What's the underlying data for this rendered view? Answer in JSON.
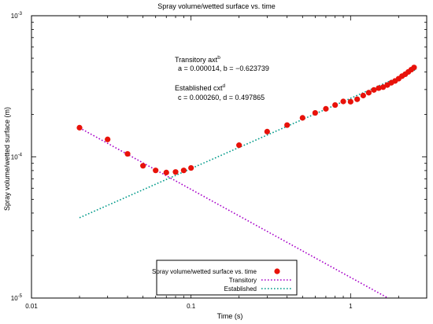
{
  "chart_data": {
    "type": "scatter",
    "title": "Spray volume/wetted surface vs. time",
    "xlabel": "Time (s)",
    "ylabel": "Spray volume/wetted surface (m)",
    "xscale": "log",
    "yscale": "log",
    "xlim": [
      0.01,
      3
    ],
    "ylim": [
      1e-05,
      0.001
    ],
    "x_ticks": [
      {
        "value": 0.01,
        "label": "0.01"
      },
      {
        "value": 0.1,
        "label": "0.1"
      },
      {
        "value": 1,
        "label": "1"
      }
    ],
    "y_ticks": [
      {
        "value": 1e-05,
        "base": "10",
        "exp": "-5"
      },
      {
        "value": 0.0001,
        "base": "10",
        "exp": "-4"
      },
      {
        "value": 0.001,
        "base": "10",
        "exp": "-3"
      }
    ],
    "grid": false,
    "legend_position": "bottom-center",
    "series": [
      {
        "name": "Spray volume/wetted surface vs. time",
        "kind": "points",
        "color": "#e8120a",
        "x": [
          0.02,
          0.03,
          0.04,
          0.05,
          0.06,
          0.07,
          0.08,
          0.09,
          0.1,
          0.2,
          0.3,
          0.4,
          0.5,
          0.6,
          0.7,
          0.8,
          0.9,
          1.0,
          1.1,
          1.2,
          1.3,
          1.4,
          1.5,
          1.6,
          1.7,
          1.8,
          1.9,
          2.0,
          2.1,
          2.2,
          2.3,
          2.4,
          2.5
        ],
        "y": [
          0.000161,
          0.000133,
          0.000105,
          8.65e-05,
          8.02e-05,
          7.75e-05,
          7.82e-05,
          8.02e-05,
          8.35e-05,
          0.000121,
          0.000151,
          0.000168,
          0.000189,
          0.000205,
          0.000219,
          0.000233,
          0.000247,
          0.000246,
          0.000256,
          0.000272,
          0.000285,
          0.000298,
          0.000307,
          0.000312,
          0.000323,
          0.000335,
          0.000345,
          0.000358,
          0.000373,
          0.000385,
          0.0004,
          0.000415,
          0.00043
        ]
      },
      {
        "name": "Transitory",
        "kind": "fit-power",
        "color": "#a600c8",
        "a": 1.4e-05,
        "b": -0.623739,
        "x_range": [
          0.02,
          3
        ]
      },
      {
        "name": "Established",
        "kind": "fit-power",
        "color": "#009a8a",
        "c": 0.00026,
        "d": 0.497865,
        "x_range": [
          0.02,
          2.6
        ]
      }
    ],
    "annotations": {
      "transitory_title": "Transitory axt",
      "transitory_exp": "b",
      "transitory_params": "a = 0.000014, b = −0.623739",
      "established_title": "Established cxt",
      "established_exp": "d",
      "established_params": "c = 0.000260, d = 0.497865"
    }
  }
}
